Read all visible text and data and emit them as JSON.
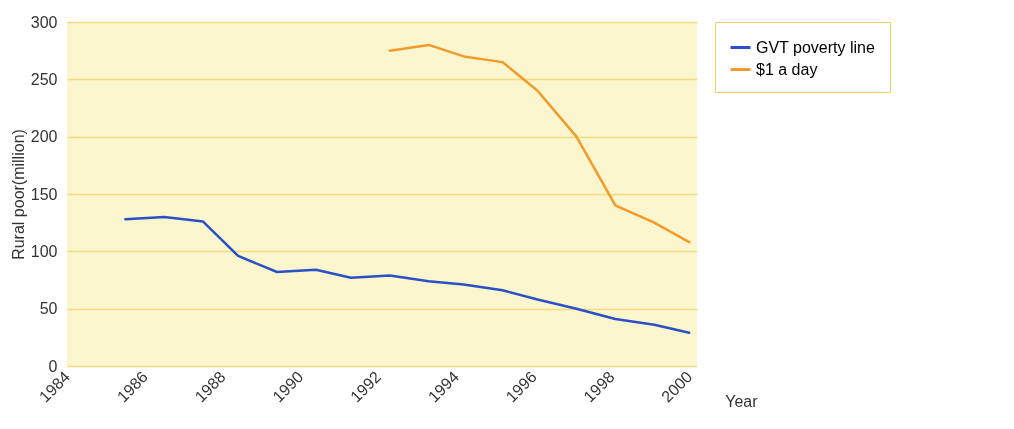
{
  "chart_data": {
    "type": "line",
    "xlabel": "Year",
    "ylabel": "Rural poor(million)",
    "xlim": [
      1984,
      2000.2
    ],
    "xticks": [
      1984,
      1986,
      1988,
      1990,
      1992,
      1994,
      1996,
      1998,
      2000
    ],
    "ylim": [
      0,
      300
    ],
    "yticks": [
      0,
      50,
      100,
      150,
      200,
      250,
      300
    ],
    "grid": "y",
    "legend": "right",
    "series": [
      {
        "name": "GVT poverty line",
        "color": "#2b4fc6",
        "x": [
          1985.5,
          1986.5,
          1987.5,
          1988.4,
          1989.4,
          1990.4,
          1991.3,
          1992.3,
          1993.3,
          1994.2,
          1995.2,
          1996.1,
          1997.1,
          1998.1,
          1999.1,
          2000
        ],
        "values": [
          128,
          130,
          126,
          96,
          82,
          84,
          77,
          79,
          74,
          71,
          66,
          58,
          50,
          41,
          36,
          29
        ]
      },
      {
        "name": "$1 a day",
        "color": "#f39a2a",
        "x": [
          1992.3,
          1993.3,
          1994.2,
          1995.2,
          1996.1,
          1997.1,
          1998.1,
          1999.1,
          2000
        ],
        "values": [
          275,
          280,
          270,
          265,
          240,
          200,
          140,
          125,
          108
        ]
      }
    ]
  }
}
